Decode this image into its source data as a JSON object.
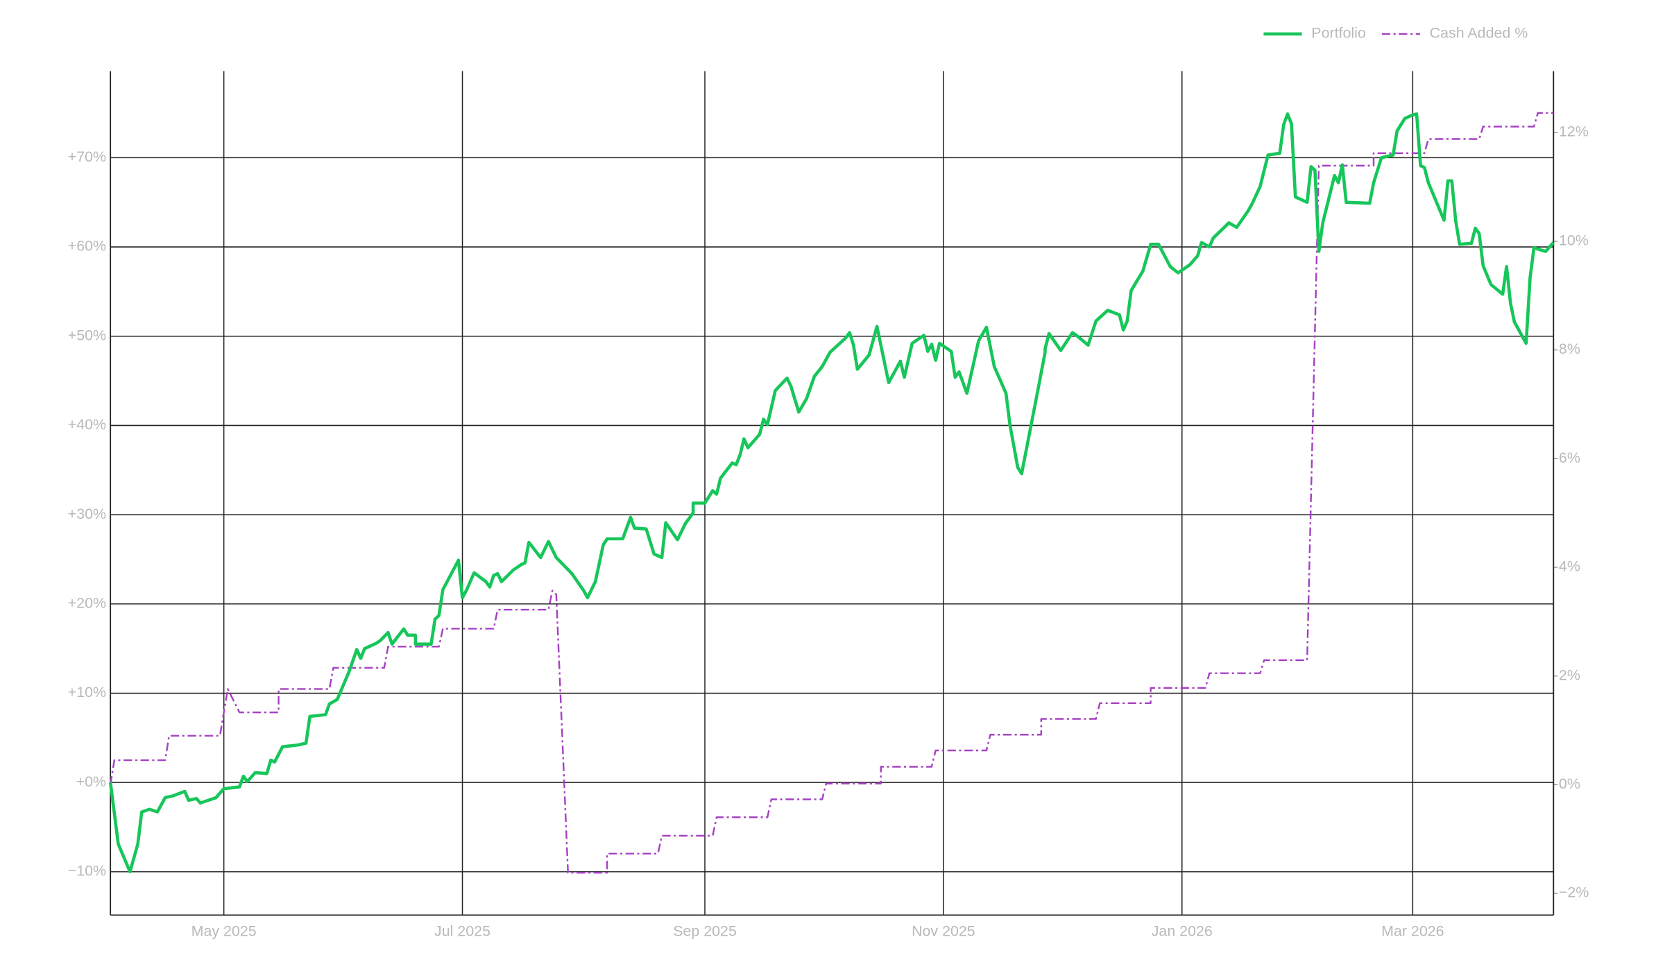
{
  "chart_data": {
    "type": "line",
    "xlim": [
      -29,
      340
    ],
    "xticks": [
      {
        "value": 0,
        "label": "May 2025"
      },
      {
        "value": 61,
        "label": "Jul 2025"
      },
      {
        "value": 123,
        "label": "Sep 2025"
      },
      {
        "value": 184,
        "label": "Nov 2025"
      },
      {
        "value": 245,
        "label": "Jan 2026"
      },
      {
        "value": 304,
        "label": "Mar 2026"
      }
    ],
    "ylim": [
      -14.86,
      79.7
    ],
    "yticks": [
      {
        "value": -10,
        "label": "−10%"
      },
      {
        "value": 0,
        "label": "+0%"
      },
      {
        "value": 10,
        "label": "+10%"
      },
      {
        "value": 20,
        "label": "+20%"
      },
      {
        "value": 30,
        "label": "+30%"
      },
      {
        "value": 40,
        "label": "+40%"
      },
      {
        "value": 50,
        "label": "+50%"
      },
      {
        "value": 60,
        "label": "+60%"
      },
      {
        "value": 70,
        "label": "+70%"
      }
    ],
    "y2lim": [
      -2.4,
      13.13
    ],
    "y2ticks": [
      {
        "value": -2,
        "label": "−2%"
      },
      {
        "value": 0,
        "label": "0%"
      },
      {
        "value": 2,
        "label": "2%"
      },
      {
        "value": 4,
        "label": "4%"
      },
      {
        "value": 6,
        "label": "6%"
      },
      {
        "value": 8,
        "label": "8%"
      },
      {
        "value": 10,
        "label": "10%"
      },
      {
        "value": 12,
        "label": "12%"
      }
    ],
    "grid": true,
    "legend": "top-right",
    "series": [
      {
        "name": "Portfolio",
        "color": "#17c65a",
        "style": "solid",
        "x": [
          -29,
          -27,
          -24,
          -22,
          -21,
          -19,
          -17,
          -15,
          -13,
          -10,
          -9,
          -7,
          -6,
          -2,
          0,
          4,
          5,
          6,
          8,
          11,
          12,
          13,
          15,
          19,
          21,
          22,
          26,
          27,
          29,
          32,
          34,
          35,
          36,
          39,
          40,
          42,
          43,
          46,
          47,
          49,
          49,
          53,
          54,
          55,
          56,
          60,
          61,
          62,
          64,
          67,
          68,
          69,
          70,
          71,
          74,
          76,
          77,
          78,
          81,
          83,
          85,
          89,
          92,
          93,
          95,
          97,
          98,
          102,
          104,
          105,
          108,
          110,
          112,
          113,
          116,
          118,
          120,
          120,
          123,
          125,
          126,
          127,
          130,
          131,
          132,
          133,
          134,
          137,
          138,
          139,
          141,
          144,
          145,
          147,
          149,
          151,
          153,
          155,
          159,
          160,
          161,
          162,
          165,
          167,
          170,
          173,
          174,
          176,
          179,
          180,
          181,
          182,
          183,
          186,
          187,
          188,
          190,
          193,
          195,
          197,
          200,
          201,
          203,
          204,
          208,
          210,
          210,
          211,
          214,
          217,
          218,
          221,
          223,
          226,
          229,
          230,
          231,
          232,
          235,
          237,
          239,
          242,
          244,
          247,
          249,
          250,
          252,
          253,
          257,
          259,
          262,
          263,
          265,
          267,
          270,
          271,
          272,
          273,
          274,
          277,
          278,
          279,
          280,
          281,
          284,
          285,
          286,
          287,
          293,
          294,
          296,
          299,
          300,
          302,
          304,
          305,
          306,
          307,
          308,
          312,
          313,
          314,
          315,
          316,
          319,
          320,
          321,
          322,
          324,
          327,
          328,
          329,
          330,
          333,
          334,
          335,
          338,
          340
        ],
        "values": [
          0,
          -6.9,
          -10.0,
          -6.9,
          -3.3,
          -3.0,
          -3.3,
          -1.7,
          -1.5,
          -1.0,
          -2.0,
          -1.8,
          -2.3,
          -1.7,
          -0.7,
          -0.5,
          0.7,
          0.1,
          1.1,
          1.0,
          2.5,
          2.3,
          4.0,
          4.2,
          4.4,
          7.4,
          7.6,
          8.8,
          9.3,
          12.4,
          14.9,
          13.9,
          15.0,
          15.6,
          15.9,
          16.8,
          15.5,
          17.2,
          16.5,
          16.5,
          15.5,
          15.5,
          18.3,
          18.7,
          21.6,
          24.9,
          20.7,
          21.5,
          23.5,
          22.5,
          21.9,
          23.2,
          23.4,
          22.5,
          23.8,
          24.4,
          24.6,
          26.9,
          25.2,
          27.0,
          25.2,
          23.4,
          21.5,
          20.7,
          22.5,
          26.6,
          27.3,
          27.3,
          29.7,
          28.5,
          28.4,
          25.6,
          25.2,
          29.1,
          27.2,
          29.0,
          30.2,
          31.3,
          31.3,
          32.7,
          32.3,
          34.1,
          35.8,
          35.6,
          36.7,
          38.5,
          37.5,
          39.0,
          40.7,
          40.1,
          43.9,
          45.3,
          44.4,
          41.5,
          43.0,
          45.5,
          46.6,
          48.2,
          49.8,
          50.4,
          49.0,
          46.3,
          47.9,
          51.1,
          44.8,
          47.2,
          45.4,
          49.2,
          50.1,
          48.3,
          49.1,
          47.3,
          49.2,
          48.3,
          45.4,
          46.0,
          43.6,
          49.5,
          51.0,
          46.6,
          43.6,
          40.1,
          35.3,
          34.6,
          43.6,
          48.2,
          48.6,
          50.3,
          48.4,
          50.4,
          50.1,
          49.0,
          51.7,
          52.9,
          52.4,
          50.7,
          51.7,
          55.1,
          57.3,
          60.3,
          60.3,
          57.8,
          57.1,
          58.0,
          59.0,
          60.5,
          60.0,
          61.0,
          62.7,
          62.2,
          64.1,
          64.9,
          66.8,
          70.3,
          70.5,
          73.7,
          74.9,
          73.8,
          65.6,
          65.0,
          69.0,
          68.6,
          59.5,
          62.7,
          68.0,
          67.2,
          69.2,
          65.0,
          64.9,
          67.2,
          70.0,
          70.3,
          73.0,
          74.4,
          74.8,
          74.9,
          69.1,
          68.9,
          67.2,
          63.0,
          67.4,
          67.4,
          62.9,
          60.3,
          60.4,
          62.1,
          61.5,
          57.9,
          55.8,
          54.7,
          57.8,
          53.7,
          51.6,
          49.2,
          56.5,
          59.9,
          59.5,
          60.5
        ]
      },
      {
        "name": "Cash Added %",
        "color": "#a642c4",
        "style": "dashdot",
        "axis": "y2",
        "x": [
          -29,
          -28,
          -15,
          -14,
          -1,
          1,
          4,
          14,
          14,
          27,
          28,
          41,
          42,
          55,
          56,
          69,
          70,
          83,
          84,
          85,
          88,
          98,
          98,
          111,
          112,
          125,
          126,
          139,
          140,
          153,
          154,
          168,
          168,
          181,
          182,
          195,
          196,
          209,
          209,
          223,
          224,
          237,
          237,
          251,
          252,
          265,
          266,
          277,
          280,
          294,
          294,
          307,
          308,
          321,
          322,
          335,
          336,
          340
        ],
        "values": [
          0,
          0.45,
          0.45,
          0.9,
          0.9,
          1.76,
          1.33,
          1.33,
          1.76,
          1.76,
          2.15,
          2.15,
          2.54,
          2.54,
          2.87,
          2.87,
          3.22,
          3.22,
          3.57,
          3.5,
          -1.62,
          -1.62,
          -1.27,
          -1.27,
          -0.94,
          -0.94,
          -0.6,
          -0.6,
          -0.27,
          -0.27,
          0.02,
          0.02,
          0.33,
          0.33,
          0.63,
          0.63,
          0.92,
          0.92,
          1.21,
          1.21,
          1.5,
          1.5,
          1.78,
          1.78,
          2.05,
          2.05,
          2.29,
          2.29,
          11.39,
          11.39,
          11.62,
          11.62,
          11.88,
          11.88,
          12.11,
          12.11,
          12.36,
          12.36
        ]
      }
    ]
  }
}
